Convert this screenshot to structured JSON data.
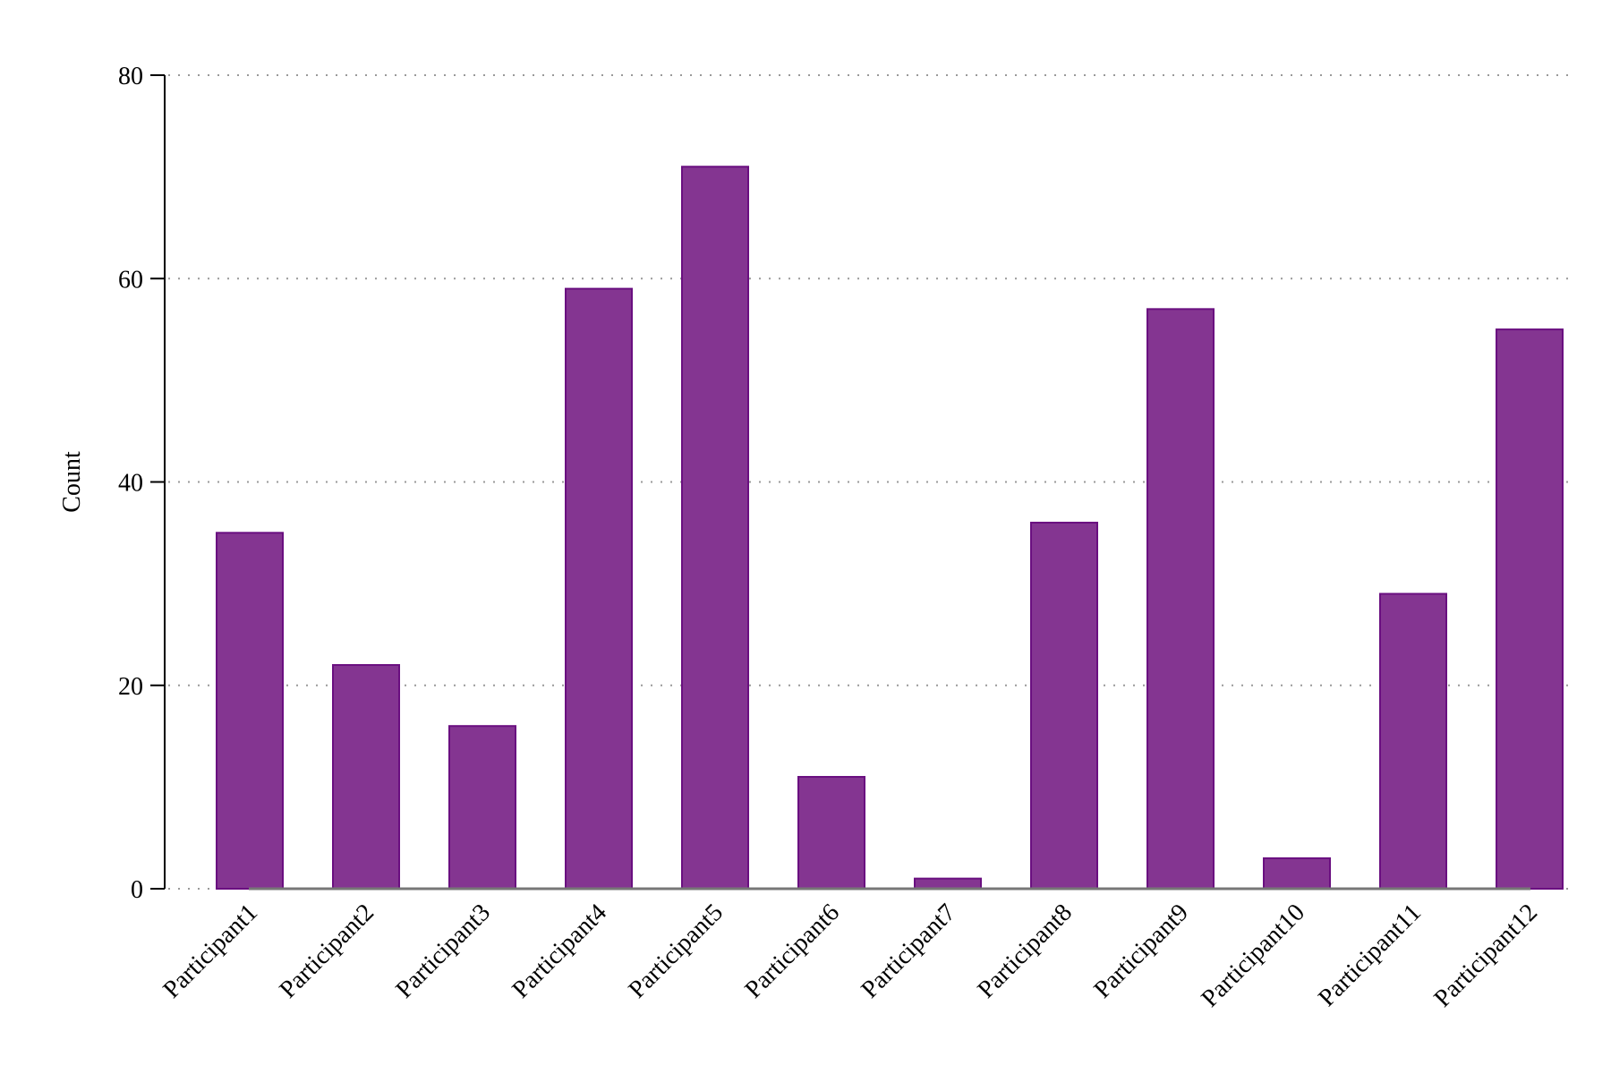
{
  "chart_data": {
    "type": "bar",
    "title": "",
    "xlabel": "",
    "ylabel": "Count",
    "categories": [
      "Participant1",
      "Participant2",
      "Participant3",
      "Participant4",
      "Participant5",
      "Participant6",
      "Participant7",
      "Participant8",
      "Participant9",
      "Participant10",
      "Participant11",
      "Participant12"
    ],
    "values": [
      35,
      22,
      16,
      59,
      71,
      11,
      1,
      36,
      57,
      3,
      29,
      55
    ],
    "ylim": [
      0,
      80
    ],
    "yticks": [
      0,
      20,
      40,
      60,
      80
    ],
    "grid": "horizontal dotted",
    "legend": "none",
    "colors": {
      "bar_fill": "#843591",
      "bar_stroke": "#6a0f80",
      "grid": "#999999",
      "axis": "#000000",
      "baseline": "#777777"
    }
  }
}
